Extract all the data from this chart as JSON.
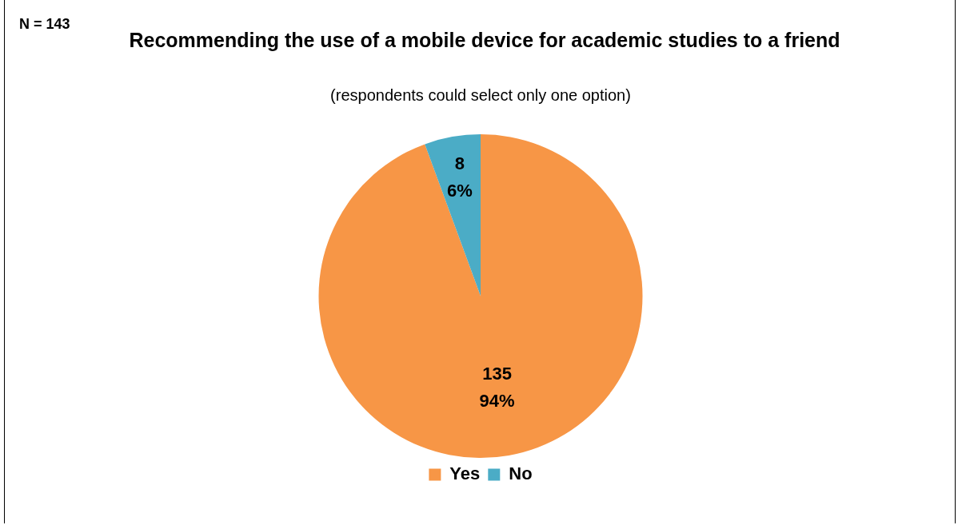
{
  "chart_data": {
    "type": "pie",
    "title": "Recommending the use of a mobile device for academic studies to a friend",
    "subtitle": "(respondents could select only one option)",
    "annotations": [
      "N = 143"
    ],
    "categories": [
      "Yes",
      "No"
    ],
    "values": [
      135,
      8
    ],
    "colors": [
      "#f79646",
      "#4bacc6"
    ],
    "value_labels": [
      "135\n94%",
      "8\n6%"
    ],
    "legend": "bottom"
  }
}
